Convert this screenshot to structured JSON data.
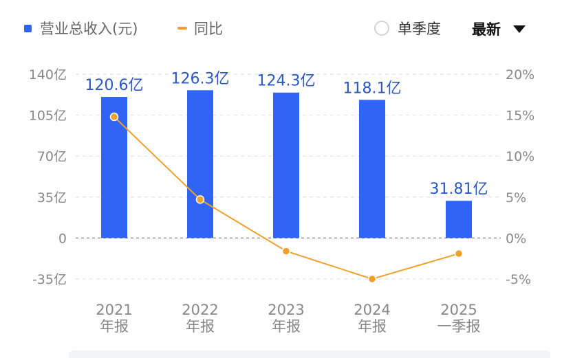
{
  "legend": {
    "revenue_label": "营业总收入(元)",
    "yoy_label": "同比",
    "quarter_toggle_label": "单季度",
    "sort_label": "最新"
  },
  "colors": {
    "bar": "#2f64f5",
    "line": "#f0a12a",
    "value_label": "#2b57c4",
    "axis_text": "#888888"
  },
  "chart_data": {
    "type": "bar",
    "categories": [
      [
        "2021",
        "年报"
      ],
      [
        "2022",
        "年报"
      ],
      [
        "2023",
        "年报"
      ],
      [
        "2024",
        "年报"
      ],
      [
        "2025",
        "一季报"
      ]
    ],
    "series": [
      {
        "name": "营业总收入(元)",
        "type": "bar",
        "axis": "left",
        "values": [
          120.6,
          126.3,
          124.3,
          118.1,
          31.81
        ],
        "labels": [
          "120.6亿",
          "126.3亿",
          "124.3亿",
          "118.1亿",
          "31.81亿"
        ]
      },
      {
        "name": "同比",
        "type": "line",
        "axis": "right",
        "values": [
          14.8,
          4.7,
          -1.6,
          -5.0,
          -1.9
        ]
      }
    ],
    "left_axis": {
      "ylim": [
        -35,
        140
      ],
      "ticks": [
        140,
        105,
        70,
        35,
        0,
        -35
      ],
      "tick_labels": [
        "140亿",
        "105亿",
        "70亿",
        "35亿",
        "0",
        "-35亿"
      ]
    },
    "right_axis": {
      "ylim": [
        -5,
        20
      ],
      "ticks": [
        20,
        15,
        10,
        5,
        0,
        -5
      ],
      "tick_labels": [
        "20%",
        "15%",
        "10%",
        "5%",
        "0%",
        "-5%"
      ]
    },
    "grid": true
  }
}
